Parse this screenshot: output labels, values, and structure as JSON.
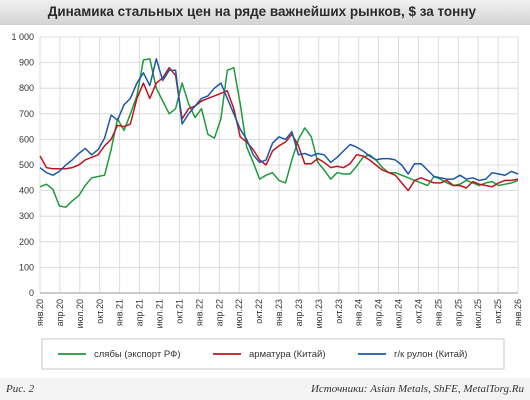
{
  "chart_data": {
    "type": "line",
    "title": "Динамика стальных цен на ряде важнейших рынков, $ за тонну",
    "xlabel": "",
    "ylabel": "",
    "ylim": [
      0,
      1000
    ],
    "yticks": [
      "0",
      "100",
      "200",
      "300",
      "400",
      "500",
      "600",
      "700",
      "800",
      "900",
      "1 000"
    ],
    "xticks": [
      "янв.20",
      "апр.20",
      "июл.20",
      "окт.20",
      "янв.21",
      "апр.21",
      "июл.21",
      "окт.21",
      "янв.22",
      "апр.22",
      "июл.22",
      "окт.22",
      "янв.23",
      "апр.23",
      "июл.23",
      "окт.23",
      "янв.24",
      "апр.24",
      "июл.24",
      "окт.24",
      "янв.25",
      "апр.25",
      "июл.25",
      "окт.25",
      "янв.26"
    ],
    "grid": true,
    "legend_position": "bottom",
    "series": [
      {
        "name": "слябы (экспорт РФ)",
        "color": "#1e9a3a",
        "values": [
          415,
          425,
          405,
          340,
          335,
          360,
          380,
          420,
          450,
          455,
          460,
          560,
          680,
          635,
          700,
          770,
          910,
          915,
          800,
          750,
          700,
          720,
          820,
          740,
          685,
          720,
          620,
          605,
          680,
          870,
          880,
          740,
          570,
          510,
          445,
          460,
          470,
          440,
          430,
          520,
          600,
          645,
          610,
          510,
          480,
          445,
          470,
          465,
          465,
          495,
          530,
          540,
          520,
          490,
          470,
          470,
          460,
          450,
          440,
          430,
          420,
          455,
          445,
          430,
          420,
          425,
          440,
          430,
          420,
          430,
          435,
          420,
          425,
          430,
          440
        ]
      },
      {
        "name": "арматура (Китай)",
        "color": "#c0141d",
        "values": [
          535,
          490,
          485,
          485,
          485,
          490,
          500,
          520,
          530,
          540,
          575,
          600,
          655,
          650,
          660,
          760,
          820,
          760,
          820,
          840,
          880,
          850,
          680,
          720,
          730,
          750,
          760,
          770,
          780,
          790,
          720,
          610,
          590,
          560,
          520,
          500,
          555,
          575,
          590,
          620,
          575,
          505,
          505,
          525,
          510,
          490,
          495,
          490,
          505,
          540,
          535,
          520,
          500,
          480,
          470,
          460,
          430,
          400,
          440,
          450,
          440,
          430,
          430,
          440,
          420,
          420,
          410,
          435,
          425,
          420,
          415,
          430,
          440,
          440,
          445
        ]
      },
      {
        "name": "г/к рулон (Китай)",
        "color": "#1c58a8",
        "values": [
          490,
          470,
          460,
          475,
          500,
          520,
          545,
          565,
          540,
          560,
          605,
          695,
          675,
          735,
          760,
          820,
          860,
          810,
          915,
          830,
          870,
          870,
          660,
          700,
          730,
          760,
          770,
          800,
          820,
          760,
          700,
          640,
          600,
          540,
          510,
          520,
          585,
          610,
          600,
          630,
          540,
          545,
          535,
          545,
          540,
          510,
          530,
          555,
          580,
          570,
          555,
          535,
          520,
          525,
          525,
          520,
          500,
          465,
          505,
          505,
          480,
          455,
          450,
          445,
          445,
          460,
          445,
          450,
          440,
          445,
          470,
          465,
          460,
          475,
          465
        ]
      }
    ]
  },
  "figure_label": "Рис. 2",
  "source_text": "Источники: Asian Metals, ShFE, MetalTorg.Ru"
}
